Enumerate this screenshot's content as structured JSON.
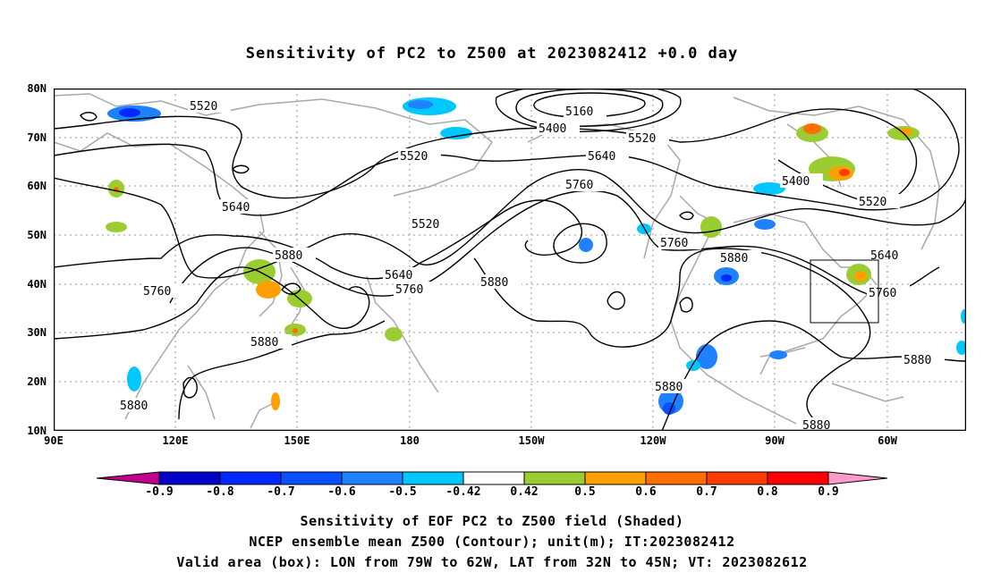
{
  "title": "Sensitivity of PC2 to Z500 at 2023082412 +0.0 day",
  "lat_labels": [
    "80N",
    "70N",
    "60N",
    "50N",
    "40N",
    "30N",
    "20N",
    "10N"
  ],
  "lon_labels": [
    "90E",
    "120E",
    "150E",
    "180",
    "150W",
    "120W",
    "90W",
    "60W"
  ],
  "contour_labels": [
    "5160",
    "5400",
    "5520",
    "5520",
    "5520",
    "5520",
    "5640",
    "5640",
    "5640",
    "5760",
    "5760",
    "5760",
    "5760",
    "5880",
    "5880",
    "5880",
    "5880",
    "5880",
    "5880",
    "5880",
    "5880",
    "5400",
    "5520",
    "5640",
    "5760"
  ],
  "colorbar": {
    "labels": [
      "-0.9",
      "-0.8",
      "-0.7",
      "-0.6",
      "-0.5",
      "-0.42",
      "0.42",
      "0.5",
      "0.6",
      "0.7",
      "0.8",
      "0.9"
    ],
    "colors": [
      "#c0008c",
      "#0000c8",
      "#0028ff",
      "#0a50ff",
      "#1e82ff",
      "#00c8ff",
      "#ffffff",
      "#9bcd32",
      "#ffa000",
      "#ff6e00",
      "#ff3c00",
      "#ff0000",
      "#ff9bc8"
    ]
  },
  "captions": [
    "Sensitivity of EOF PC2 to Z500 field (Shaded)",
    "NCEP ensemble mean Z500 (Contour); unit(m); IT:2023082412",
    "Valid area (box): LON from 79W to 62W, LAT from 32N to 45N; VT: 2023082612"
  ]
}
